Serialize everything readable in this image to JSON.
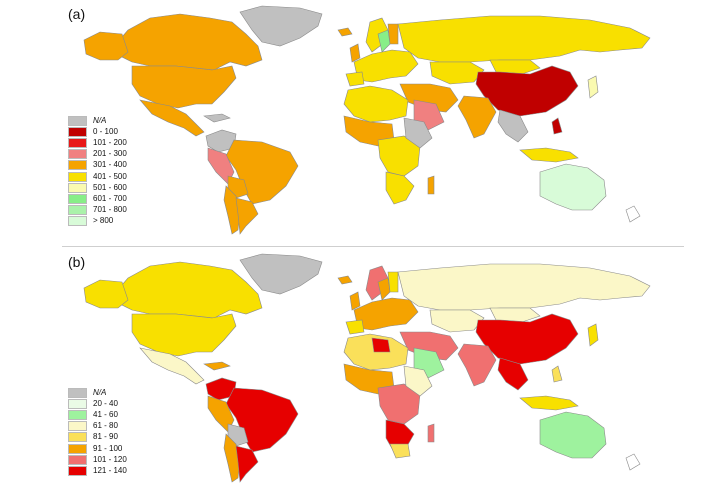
{
  "colors": {
    "na": "#c0c0c0",
    "ocean": "#ffffff",
    "border": "#8a8a8a"
  },
  "panels": [
    {
      "label": "(a)",
      "legend": [
        {
          "label": "N/A",
          "color": "#c0c0c0",
          "italic": true
        },
        {
          "label": "0 - 100",
          "color": "#c00000"
        },
        {
          "label": "101 - 200",
          "color": "#e81818"
        },
        {
          "label": "201 - 300",
          "color": "#f08080"
        },
        {
          "label": "301 - 400",
          "color": "#f5a300"
        },
        {
          "label": "401 - 500",
          "color": "#f8e000"
        },
        {
          "label": "501 - 600",
          "color": "#fafab0"
        },
        {
          "label": "601 - 700",
          "color": "#88ee88"
        },
        {
          "label": "701 - 800",
          "color": "#aaf2aa"
        },
        {
          "label": "> 800",
          "color": "#d8fbd8"
        }
      ]
    },
    {
      "label": "(b)",
      "legend": [
        {
          "label": "N/A",
          "color": "#c0c0c0",
          "italic": true
        },
        {
          "label": "20 - 40",
          "color": "#eafbe6"
        },
        {
          "label": "41 - 60",
          "color": "#9ef29e"
        },
        {
          "label": "61 - 80",
          "color": "#fbf7c8"
        },
        {
          "label": "81 - 90",
          "color": "#fae05a"
        },
        {
          "label": "91 - 100",
          "color": "#f5a300"
        },
        {
          "label": "101 - 120",
          "color": "#f07070"
        },
        {
          "label": "121 - 140",
          "color": "#e60000"
        }
      ]
    }
  ]
}
